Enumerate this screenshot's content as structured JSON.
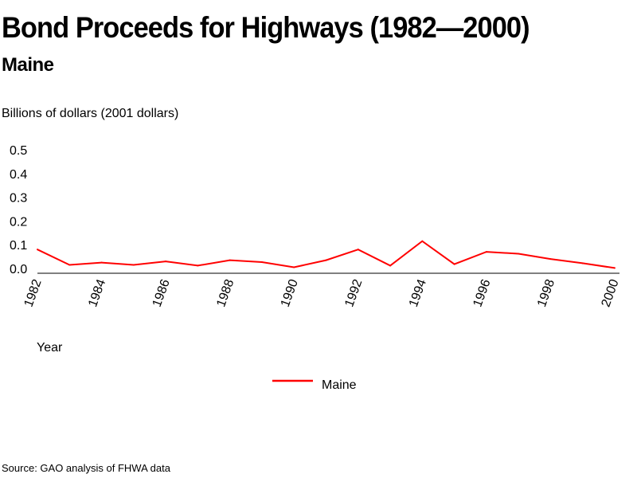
{
  "page": {
    "title": "Bond Proceeds for Highways (1982—2000)",
    "subtitle": "Maine",
    "source": "Source: GAO analysis of FHWA data"
  },
  "chart_data": {
    "type": "line",
    "title": "Bond Proceeds for Highways (1982—2000)",
    "subtitle": "Maine",
    "ylabel": "Billions of dollars (2001 dollars)",
    "xlabel": "Year",
    "x": [
      1982,
      1983,
      1984,
      1985,
      1986,
      1987,
      1988,
      1989,
      1990,
      1991,
      1992,
      1993,
      1994,
      1995,
      1996,
      1997,
      1998,
      1999,
      2000
    ],
    "series": [
      {
        "name": "Maine",
        "color": "#ff0000",
        "values": [
          0.08,
          0.015,
          0.025,
          0.015,
          0.03,
          0.012,
          0.035,
          0.027,
          0.005,
          0.035,
          0.08,
          0.012,
          0.115,
          0.018,
          0.07,
          0.062,
          0.04,
          0.022,
          0.002
        ]
      }
    ],
    "x_ticks": [
      "1982",
      "1984",
      "1986",
      "1988",
      "1990",
      "1992",
      "1994",
      "1996",
      "1998",
      "2000"
    ],
    "y_ticks": [
      "0.0",
      "0.1",
      "0.2",
      "0.3",
      "0.4",
      "0.5"
    ],
    "ylim": [
      0,
      0.5
    ],
    "xlim": [
      1982,
      2000
    ],
    "grid": false,
    "legend_position": "bottom-center"
  }
}
